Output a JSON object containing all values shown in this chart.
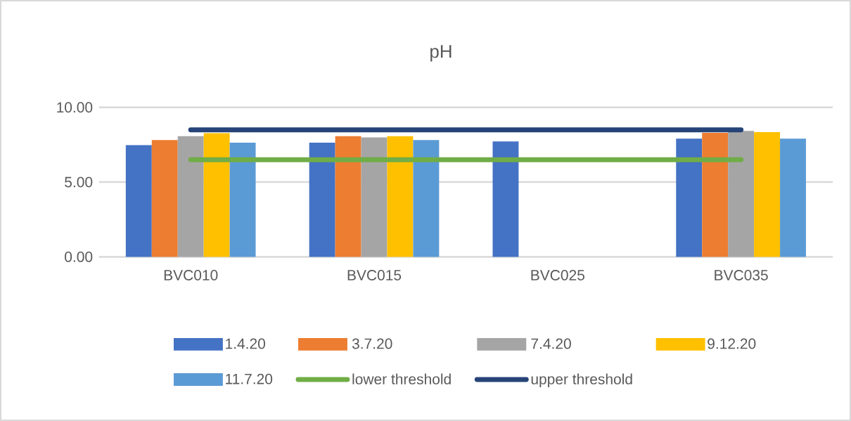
{
  "chart_data": {
    "type": "bar",
    "title": "pH",
    "categories": [
      "BVC010",
      "BVC015",
      "BVC025",
      "BVC035"
    ],
    "series": [
      {
        "name": "1.4.20",
        "color": "#4472c4",
        "values": [
          7.47,
          7.64,
          7.72,
          7.91
        ]
      },
      {
        "name": "3.7.20",
        "color": "#ed7d31",
        "values": [
          7.81,
          8.07,
          null,
          8.3
        ]
      },
      {
        "name": "7.4.20",
        "color": "#a5a5a5",
        "values": [
          8.07,
          7.99,
          null,
          8.43
        ]
      },
      {
        "name": "9.12.20",
        "color": "#ffc000",
        "values": [
          8.27,
          8.07,
          null,
          8.34
        ]
      },
      {
        "name": "11.7.20",
        "color": "#5b9bd5",
        "values": [
          7.64,
          7.81,
          null,
          7.91
        ]
      },
      {
        "name": "lower threshold",
        "color": "#70ad47",
        "type": "line",
        "values": [
          6.5,
          6.5,
          6.5,
          6.5
        ]
      },
      {
        "name": "upper threshold",
        "color": "#264478",
        "type": "line",
        "values": [
          8.5,
          8.5,
          8.5,
          8.5
        ]
      }
    ],
    "ylim": [
      0,
      10
    ],
    "yticks": [
      {
        "value": 0,
        "label": "0.00"
      },
      {
        "value": 5,
        "label": "5.00"
      },
      {
        "value": 10,
        "label": "10.00"
      }
    ],
    "grid": "y",
    "legend": "bottom",
    "marker": "none",
    "line_style": "solid"
  }
}
